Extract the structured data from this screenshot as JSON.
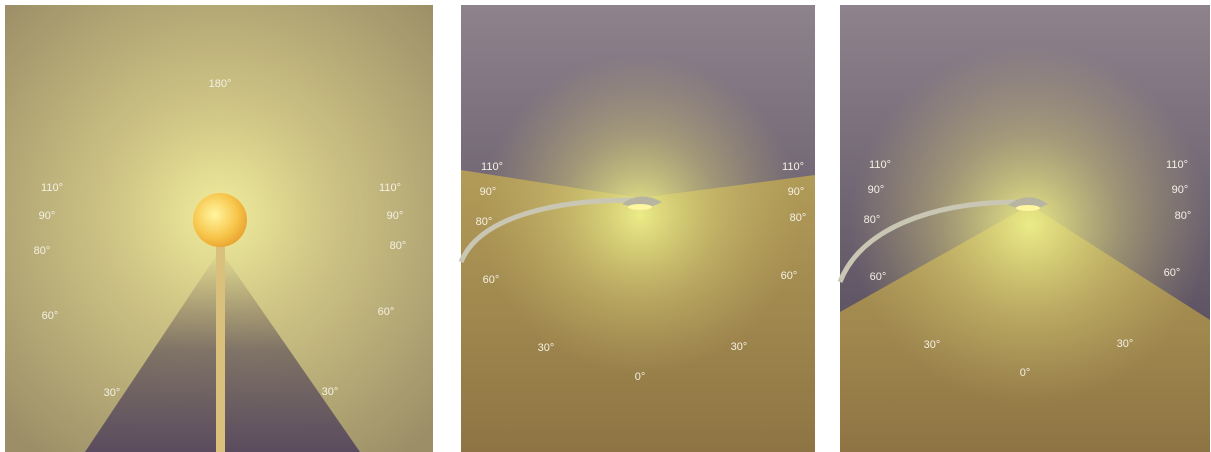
{
  "panels": [
    {
      "labels": [
        "180°",
        "110°",
        "110°",
        "90°",
        "90°",
        "80°",
        "80°",
        "60°",
        "60°",
        "30°",
        "30°"
      ]
    },
    {
      "labels": [
        "110°",
        "110°",
        "90°",
        "90°",
        "80°",
        "80°",
        "60°",
        "60°",
        "30°",
        "30°",
        "0°"
      ]
    },
    {
      "labels": [
        "110°",
        "110°",
        "90°",
        "90°",
        "80°",
        "80°",
        "60°",
        "60°",
        "30°",
        "30°",
        "0°"
      ]
    }
  ]
}
